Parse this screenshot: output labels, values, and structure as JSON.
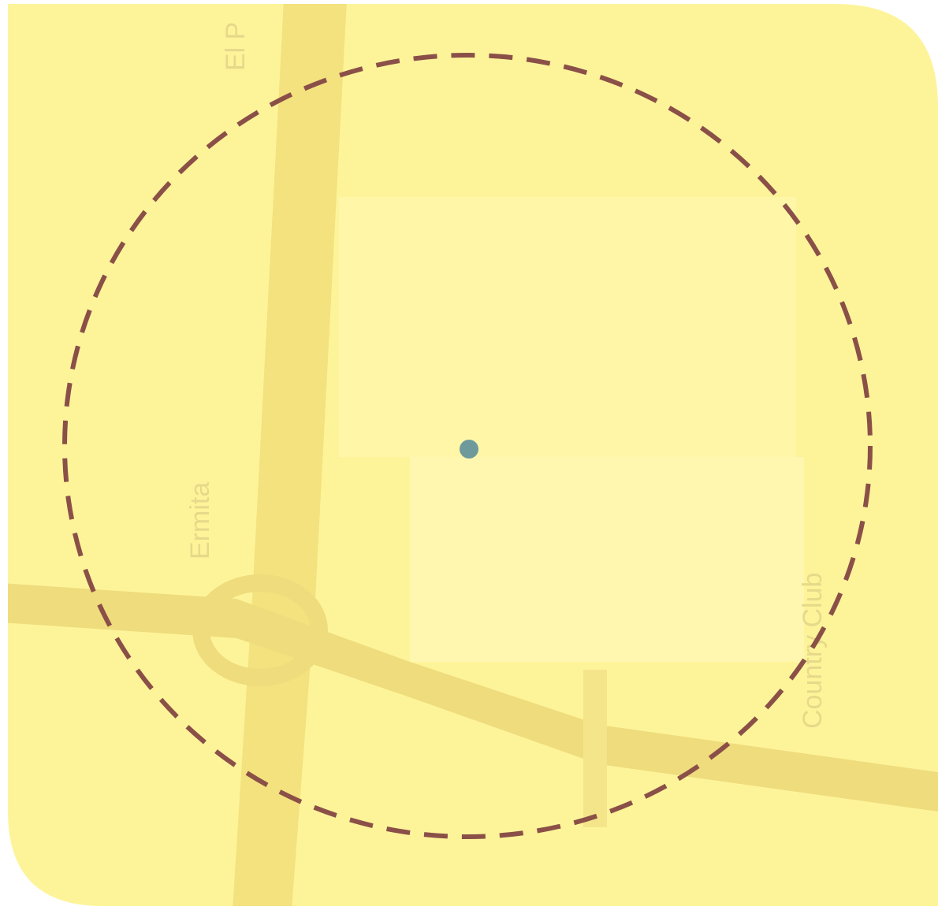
{
  "labels": {
    "north_road": "El P",
    "west_road": "Ermita",
    "east_road": "Country Club"
  }
}
